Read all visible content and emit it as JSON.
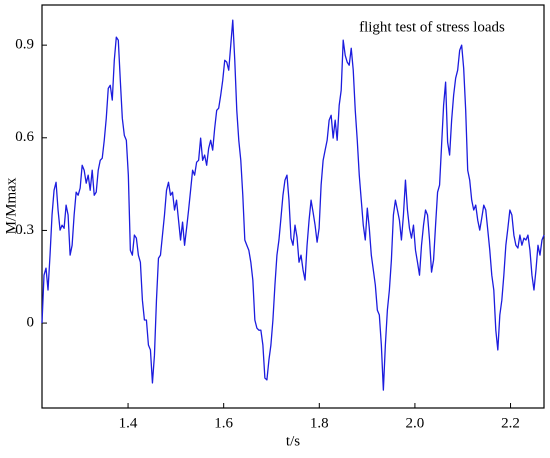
{
  "chart_data": {
    "type": "line",
    "annotation": "flight test of stress loads",
    "x_label": "t/s",
    "y_label": "M/Mmax",
    "color": "#1c1cde",
    "xlim": [
      1.22,
      2.27
    ],
    "ylim": [
      -0.275,
      1.03
    ],
    "xticks": [
      1.4,
      1.6,
      1.8,
      {
        "value": 2,
        "label": "2.0"
      },
      2.2
    ],
    "yticks": [
      0,
      0.3,
      0.6,
      0.9
    ],
    "grid": false,
    "x": [
      1.22,
      1.2242,
      1.2284,
      1.2326,
      1.2368,
      1.241,
      1.2452,
      1.2494,
      1.2536,
      1.2578,
      1.262,
      1.2662,
      1.2704,
      1.2746,
      1.2788,
      1.283,
      1.2872,
      1.2914,
      1.2956,
      1.2998,
      1.304,
      1.3082,
      1.3124,
      1.3166,
      1.3208,
      1.325,
      1.3292,
      1.3334,
      1.3376,
      1.3418,
      1.346,
      1.3502,
      1.3544,
      1.3586,
      1.3628,
      1.367,
      1.3712,
      1.3754,
      1.3796,
      1.3838,
      1.388,
      1.3922,
      1.3964,
      1.4006,
      1.4048,
      1.409,
      1.4132,
      1.4174,
      1.4216,
      1.4258,
      1.43,
      1.4342,
      1.4384,
      1.4426,
      1.4468,
      1.451,
      1.4552,
      1.4594,
      1.4636,
      1.4678,
      1.472,
      1.4762,
      1.4804,
      1.4846,
      1.4888,
      1.493,
      1.4972,
      1.5014,
      1.5056,
      1.5098,
      1.514,
      1.5182,
      1.5224,
      1.5266,
      1.5308,
      1.535,
      1.5392,
      1.5434,
      1.5476,
      1.5518,
      1.556,
      1.5602,
      1.5644,
      1.5686,
      1.5728,
      1.577,
      1.5812,
      1.5854,
      1.5896,
      1.5938,
      1.598,
      1.6022,
      1.6064,
      1.6106,
      1.6148,
      1.619,
      1.6232,
      1.6274,
      1.6316,
      1.6358,
      1.64,
      1.6442,
      1.6484,
      1.6526,
      1.6568,
      1.661,
      1.6652,
      1.6694,
      1.6736,
      1.6778,
      1.682,
      1.6862,
      1.6904,
      1.6946,
      1.6988,
      1.703,
      1.7072,
      1.7114,
      1.7156,
      1.7198,
      1.724,
      1.7282,
      1.7324,
      1.7366,
      1.7408,
      1.745,
      1.7492,
      1.7534,
      1.7576,
      1.7618,
      1.766,
      1.7702,
      1.7744,
      1.7786,
      1.7828,
      1.787,
      1.7912,
      1.7954,
      1.7996,
      1.8038,
      1.808,
      1.8122,
      1.8164,
      1.8206,
      1.8248,
      1.829,
      1.8332,
      1.8374,
      1.8416,
      1.8458,
      1.85,
      1.8542,
      1.8584,
      1.8626,
      1.8668,
      1.871,
      1.8752,
      1.8794,
      1.8836,
      1.8878,
      1.892,
      1.8962,
      1.9004,
      1.9046,
      1.9088,
      1.913,
      1.9172,
      1.9214,
      1.9256,
      1.9298,
      1.934,
      1.9382,
      1.9424,
      1.9466,
      1.9508,
      1.955,
      1.9592,
      1.9634,
      1.9676,
      1.9718,
      1.976,
      1.9802,
      1.9844,
      1.9886,
      1.9928,
      1.997,
      2.0012,
      2.0054,
      2.0096,
      2.0138,
      2.018,
      2.0222,
      2.0264,
      2.0306,
      2.0348,
      2.039,
      2.0432,
      2.0474,
      2.0516,
      2.0558,
      2.06,
      2.0642,
      2.0684,
      2.0726,
      2.0768,
      2.081,
      2.0852,
      2.0894,
      2.0936,
      2.0978,
      2.102,
      2.1062,
      2.1104,
      2.1146,
      2.1188,
      2.123,
      2.1272,
      2.1314,
      2.1356,
      2.1398,
      2.144,
      2.1482,
      2.1524,
      2.1566,
      2.1608,
      2.165,
      2.1692,
      2.1734,
      2.1776,
      2.1818,
      2.186,
      2.1902,
      2.1944,
      2.1986,
      2.2028,
      2.207,
      2.2112,
      2.2154,
      2.2196,
      2.2238,
      2.228,
      2.2322,
      2.2364,
      2.2406,
      2.2448,
      2.249,
      2.2532,
      2.2574,
      2.2616,
      2.2658,
      2.27
    ],
    "values": [
      0,
      0.155,
      0.178,
      0.107,
      0.22,
      0.35,
      0.43,
      0.456,
      0.366,
      0.301,
      0.317,
      0.307,
      0.382,
      0.35,
      0.22,
      0.252,
      0.35,
      0.424,
      0.414,
      0.437,
      0.511,
      0.495,
      0.453,
      0.479,
      0.43,
      0.495,
      0.414,
      0.424,
      0.495,
      0.527,
      0.534,
      0.592,
      0.663,
      0.76,
      0.77,
      0.722,
      0.851,
      0.926,
      0.916,
      0.786,
      0.663,
      0.608,
      0.592,
      0.479,
      0.236,
      0.22,
      0.285,
      0.275,
      0.22,
      0.197,
      0.074,
      0.01,
      0.01,
      -0.071,
      -0.087,
      -0.194,
      -0.104,
      0.074,
      0.21,
      0.22,
      0.285,
      0.35,
      0.43,
      0.456,
      0.414,
      0.424,
      0.366,
      0.398,
      0.333,
      0.269,
      0.327,
      0.252,
      0.307,
      0.366,
      0.43,
      0.495,
      0.479,
      0.521,
      0.527,
      0.599,
      0.527,
      0.544,
      0.511,
      0.566,
      0.592,
      0.56,
      0.631,
      0.689,
      0.696,
      0.738,
      0.786,
      0.851,
      0.845,
      0.819,
      0.9,
      0.981,
      0.851,
      0.689,
      0.592,
      0.527,
      0.414,
      0.269,
      0.252,
      0.236,
      0.197,
      0.139,
      0.01,
      -0.016,
      -0.023,
      -0.023,
      -0.071,
      -0.178,
      -0.184,
      -0.12,
      -0.071,
      0.01,
      0.123,
      0.22,
      0.269,
      0.34,
      0.414,
      0.463,
      0.479,
      0.398,
      0.275,
      0.252,
      0.317,
      0.278,
      0.197,
      0.22,
      0.172,
      0.139,
      0.252,
      0.333,
      0.398,
      0.359,
      0.317,
      0.262,
      0.307,
      0.447,
      0.527,
      0.56,
      0.592,
      0.657,
      0.673,
      0.599,
      0.657,
      0.592,
      0.705,
      0.754,
      0.916,
      0.867,
      0.845,
      0.835,
      0.89,
      0.819,
      0.689,
      0.592,
      0.479,
      0.398,
      0.317,
      0.269,
      0.372,
      0.307,
      0.22,
      0.172,
      0.123,
      0.042,
      0.026,
      -0.071,
      -0.217,
      -0.071,
      0.042,
      0.107,
      0.204,
      0.35,
      0.398,
      0.366,
      0.333,
      0.269,
      0.35,
      0.463,
      0.366,
      0.307,
      0.275,
      0.317,
      0.236,
      0.197,
      0.155,
      0.252,
      0.317,
      0.366,
      0.35,
      0.269,
      0.165,
      0.204,
      0.317,
      0.424,
      0.447,
      0.576,
      0.705,
      0.78,
      0.586,
      0.544,
      0.657,
      0.738,
      0.793,
      0.819,
      0.883,
      0.9,
      0.825,
      0.689,
      0.495,
      0.463,
      0.398,
      0.366,
      0.382,
      0.333,
      0.301,
      0.34,
      0.382,
      0.366,
      0.301,
      0.236,
      0.155,
      0.107,
      -0.023,
      -0.087,
      0.026,
      0.074,
      0.155,
      0.252,
      0.307,
      0.366,
      0.35,
      0.285,
      0.252,
      0.243,
      0.285,
      0.252,
      0.275,
      0.269,
      0.285,
      0.236,
      0.155,
      0.107,
      0.172,
      0.252,
      0.22,
      0.269,
      0.285
    ]
  }
}
